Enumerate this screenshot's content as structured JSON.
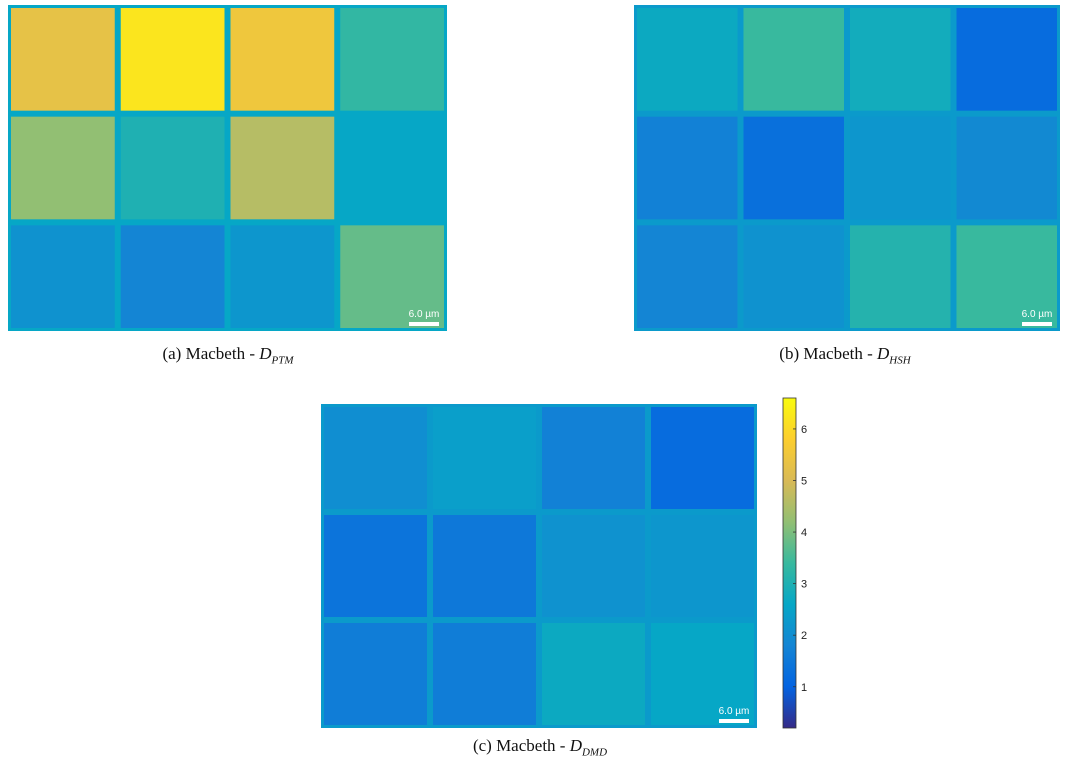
{
  "panels": [
    {
      "label": "(a)",
      "text": "Macbeth -",
      "symbol": "D",
      "subscript": "PTM",
      "scale_label": "6.0 µm",
      "background": 2.6,
      "patches": [
        [
          5.3,
          6.2,
          5.5,
          3.3
        ],
        [
          4.2,
          3.0,
          4.6,
          2.6
        ],
        [
          2.1,
          1.8,
          2.2,
          3.8
        ]
      ]
    },
    {
      "label": "(b)",
      "text": "Macbeth -",
      "symbol": "D",
      "subscript": "HSH",
      "scale_label": "6.0 µm",
      "background": 2.3,
      "patches": [
        [
          2.7,
          3.4,
          2.8,
          1.2
        ],
        [
          1.7,
          1.3,
          2.2,
          1.9
        ],
        [
          1.8,
          2.1,
          3.1,
          3.4
        ]
      ]
    },
    {
      "label": "(c)",
      "text": "Macbeth -",
      "symbol": "D",
      "subscript": "DMD",
      "scale_label": "6.0 µm",
      "background": 2.3,
      "patches": [
        [
          2.0,
          2.4,
          1.7,
          1.2
        ],
        [
          1.4,
          1.5,
          2.1,
          2.2
        ],
        [
          1.6,
          1.6,
          2.7,
          2.6
        ]
      ]
    }
  ],
  "colorbar": {
    "lim": [
      0.2,
      6.6
    ],
    "ticks": [
      1,
      2,
      3,
      4,
      5,
      6
    ]
  }
}
